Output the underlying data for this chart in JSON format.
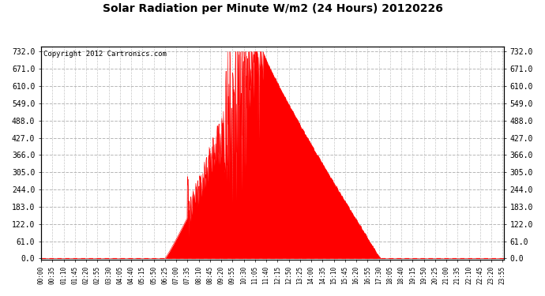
{
  "title": "Solar Radiation per Minute W/m2 (24 Hours) 20120226",
  "copyright": "Copyright 2012 Cartronics.com",
  "bg_color": "#ffffff",
  "plot_bg_color": "#ffffff",
  "fill_color": "#ff0000",
  "line_color": "#ff0000",
  "dashed_line_color": "#ff0000",
  "grid_color": "#b0b0b0",
  "yticks": [
    0.0,
    61.0,
    122.0,
    183.0,
    244.0,
    305.0,
    366.0,
    427.0,
    488.0,
    549.0,
    610.0,
    671.0,
    732.0
  ],
  "ymax": 750,
  "ymin": -5,
  "total_minutes": 1440,
  "sunrise_min": 385,
  "sunset_min": 1055,
  "peak_min": 690,
  "peak_val": 732
}
